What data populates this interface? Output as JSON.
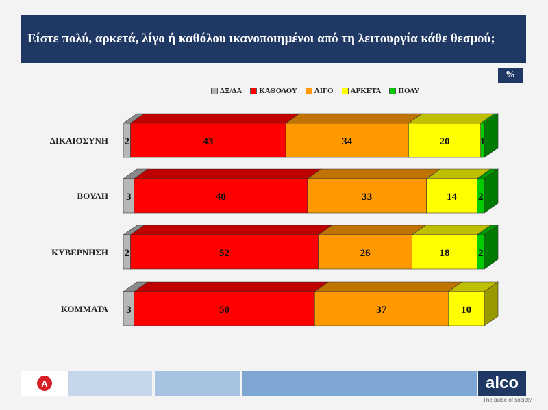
{
  "title": "Είστε πολύ, αρκετά, λίγο ή καθόλου ικανοποιημένοι από τη λειτουργία κάθε θεσμού;",
  "unit_badge": "%",
  "chart_data": {
    "type": "bar",
    "orientation": "horizontal",
    "stacked": true,
    "categories": [
      "ΔΙΚΑΙΟΣΥΝΗ",
      "ΒΟΥΛΗ",
      "ΚΥΒΕΡΝΗΣΗ",
      "ΚΟΜΜΑΤΑ"
    ],
    "series": [
      {
        "name": "ΔΞ/ΔΑ",
        "color": "#b7b7b7",
        "values": [
          2,
          3,
          2,
          3
        ]
      },
      {
        "name": "ΚΑΘΟΛΟΥ",
        "color": "#ff0000",
        "values": [
          43,
          48,
          52,
          50
        ]
      },
      {
        "name": "ΛΙΓΟ",
        "color": "#ff9900",
        "values": [
          34,
          33,
          26,
          37
        ]
      },
      {
        "name": "ΑΡΚΕΤΑ",
        "color": "#ffff00",
        "values": [
          20,
          14,
          18,
          10
        ]
      },
      {
        "name": "ΠΟΛΥ",
        "color": "#00cc00",
        "values": [
          1,
          2,
          2,
          0
        ]
      }
    ],
    "legend_position": "top",
    "grid": false
  },
  "footer": {
    "brand": "alco",
    "tagline": "The pulse of society",
    "logo_letter": "A"
  }
}
